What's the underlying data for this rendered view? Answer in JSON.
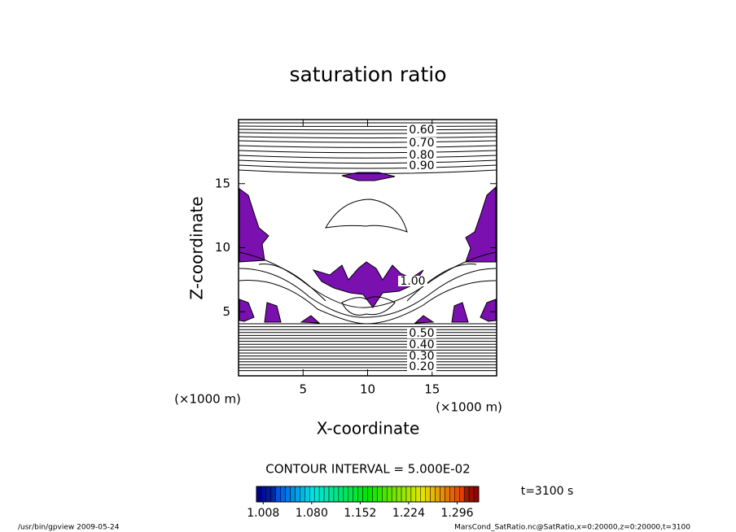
{
  "chart_data": {
    "type": "contour",
    "title": "saturation ratio",
    "xlabel": "X-coordinate",
    "ylabel": "Z-coordinate",
    "xunit": "(×1000 m)",
    "yunit": "(×1000 m)",
    "xlim": [
      0,
      20
    ],
    "ylim": [
      0,
      20
    ],
    "xticks": [
      5,
      10,
      15
    ],
    "yticks": [
      5,
      10,
      15
    ],
    "contour_labels": [
      "0.60",
      "0.70",
      "0.80",
      "0.90",
      "1.00",
      "0.50",
      "0.40",
      "0.30",
      "0.20"
    ],
    "contour_interval": "CONTOUR INTERVAL = 5.000E-02",
    "time_label": "t=3100 s",
    "colorbar": {
      "clim": [
        0.998,
        1.328
      ],
      "ticks": [
        1.008,
        {
          "value": 1.08,
          "label": "1.080"
        },
        1.152,
        1.224,
        1.296
      ]
    },
    "footer_left": "/usr/bin/gpview  2009-05-24",
    "footer_right": "MarsCond_SatRatio.nc@SatRatio,x=0:20000,z=0:20000,t=3100"
  }
}
